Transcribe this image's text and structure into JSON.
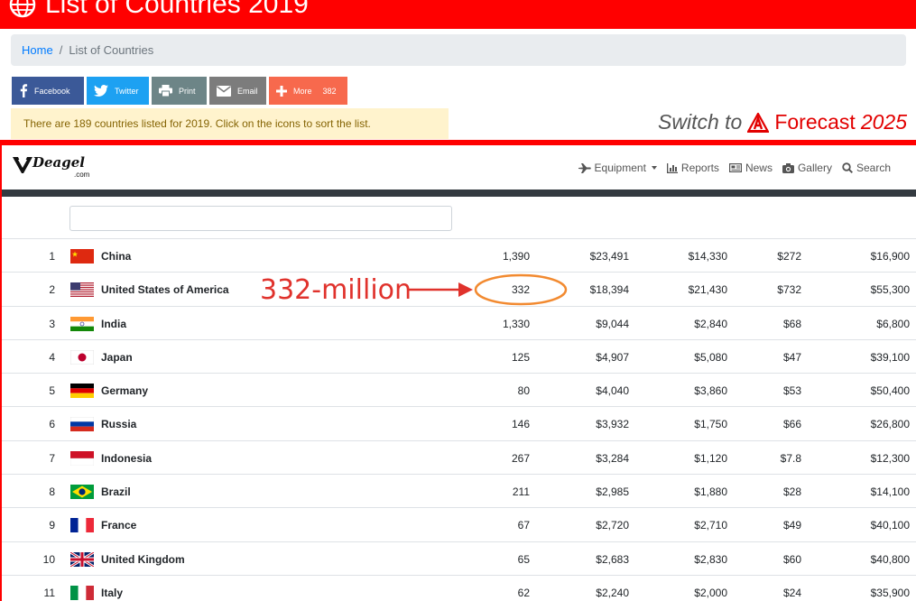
{
  "page": {
    "title": "List of Countries 2019"
  },
  "breadcrumb": {
    "home": "Home",
    "separator": "/",
    "current": "List of Countries"
  },
  "share": {
    "facebook": "Facebook",
    "twitter": "Twitter",
    "print": "Print",
    "email": "Email",
    "more": "More",
    "more_count": "382"
  },
  "info": {
    "text": "There are 189 countries listed for 2019. Click on the icons to sort the list."
  },
  "forecast": {
    "switch_to": "Switch to",
    "label": "Forecast",
    "year": "2025"
  },
  "navbar": {
    "logo_word": "Deagel",
    "logo_domain": ".com",
    "links": [
      "Equipment",
      "Reports",
      "News",
      "Gallery",
      "Search"
    ]
  },
  "filter": {
    "placeholder": ""
  },
  "annotation": {
    "text": "332-million"
  },
  "countries": [
    {
      "rank": "1",
      "name": "China",
      "pop": "1,390",
      "gdp": "$23,491",
      "mil": "$14,330",
      "pc1": "$272",
      "pc2": "$16,900",
      "flag": "cn"
    },
    {
      "rank": "2",
      "name": "United States of America",
      "pop": "332",
      "gdp": "$18,394",
      "mil": "$21,430",
      "pc1": "$732",
      "pc2": "$55,300",
      "flag": "us"
    },
    {
      "rank": "3",
      "name": "India",
      "pop": "1,330",
      "gdp": "$9,044",
      "mil": "$2,840",
      "pc1": "$68",
      "pc2": "$6,800",
      "flag": "in"
    },
    {
      "rank": "4",
      "name": "Japan",
      "pop": "125",
      "gdp": "$4,907",
      "mil": "$5,080",
      "pc1": "$47",
      "pc2": "$39,100",
      "flag": "jp"
    },
    {
      "rank": "5",
      "name": "Germany",
      "pop": "80",
      "gdp": "$4,040",
      "mil": "$3,860",
      "pc1": "$53",
      "pc2": "$50,400",
      "flag": "de"
    },
    {
      "rank": "6",
      "name": "Russia",
      "pop": "146",
      "gdp": "$3,932",
      "mil": "$1,750",
      "pc1": "$66",
      "pc2": "$26,800",
      "flag": "ru"
    },
    {
      "rank": "7",
      "name": "Indonesia",
      "pop": "267",
      "gdp": "$3,284",
      "mil": "$1,120",
      "pc1": "$7.8",
      "pc2": "$12,300",
      "flag": "id"
    },
    {
      "rank": "8",
      "name": "Brazil",
      "pop": "211",
      "gdp": "$2,985",
      "mil": "$1,880",
      "pc1": "$28",
      "pc2": "$14,100",
      "flag": "br"
    },
    {
      "rank": "9",
      "name": "France",
      "pop": "67",
      "gdp": "$2,720",
      "mil": "$2,710",
      "pc1": "$49",
      "pc2": "$40,100",
      "flag": "fr"
    },
    {
      "rank": "10",
      "name": "United Kingdom",
      "pop": "65",
      "gdp": "$2,683",
      "mil": "$2,830",
      "pc1": "$60",
      "pc2": "$40,800",
      "flag": "gb"
    },
    {
      "rank": "11",
      "name": "Italy",
      "pop": "62",
      "gdp": "$2,240",
      "mil": "$2,000",
      "pc1": "$24",
      "pc2": "$35,900",
      "flag": "it"
    }
  ],
  "colors": {
    "brand_red": "#ff0000",
    "annotation_red": "#e0322c",
    "highlight_orange": "#f28a30"
  }
}
